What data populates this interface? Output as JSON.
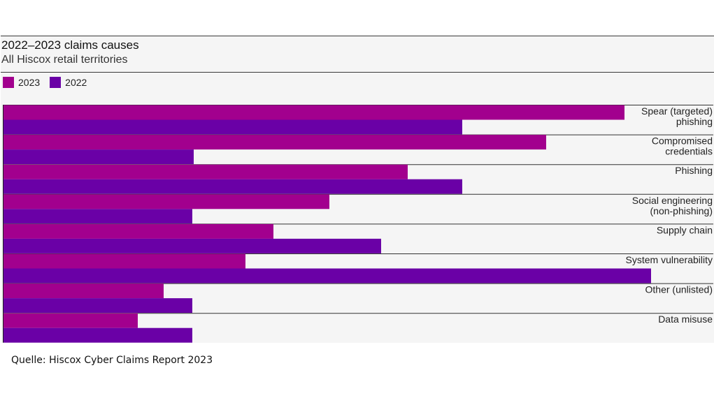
{
  "chart_data": {
    "type": "bar",
    "orientation": "horizontal",
    "title": "2022–2023 claims causes",
    "subtitle": "All Hiscox retail territories",
    "categories": [
      [
        "Spear (targeted)",
        "phishing"
      ],
      [
        "Compromised",
        "credentials"
      ],
      [
        "Phishing"
      ],
      [
        "Social engineering",
        "(non-phishing)"
      ],
      [
        "Supply chain"
      ],
      [
        "System vulnerability"
      ],
      [
        "Other (unlisted)"
      ],
      [
        "Data misuse"
      ]
    ],
    "series": [
      {
        "name": "2023",
        "color": "#a2008e",
        "values": [
          888,
          776,
          578,
          466,
          386,
          346,
          229,
          192
        ]
      },
      {
        "name": "2022",
        "color": "#6a00a6",
        "values": [
          656,
          272,
          656,
          270,
          540,
          926,
          270,
          270
        ]
      }
    ],
    "xlim": [
      0,
      1015
    ],
    "grid": false,
    "legend_position": "top-left"
  },
  "source": "Quelle: Hiscox Cyber Claims Report 2023"
}
